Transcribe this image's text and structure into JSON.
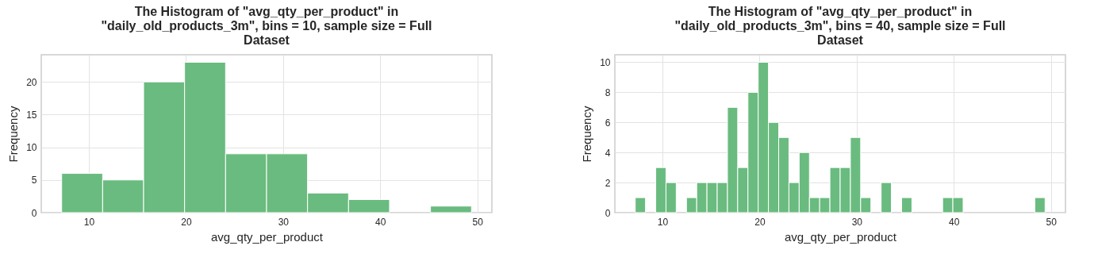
{
  "chart_data": [
    {
      "type": "histogram",
      "title": "The Histogram of \"avg_qty_per_product\" in \"daily_old_products_3m\", bins = 10, sample size = Full Dataset",
      "xlabel": "avg_qty_per_product",
      "ylabel": "Frequency",
      "color": "#6abb7f",
      "grid": true,
      "bins": [
        7.2,
        11.42,
        15.64,
        19.86,
        24.08,
        28.3,
        32.52,
        36.74,
        40.96,
        45.18,
        49.4
      ],
      "values": [
        6,
        5,
        20,
        23,
        9,
        9,
        3,
        2,
        0,
        1
      ],
      "xlim": [
        5.1,
        51.5
      ],
      "xticks": [
        10,
        20,
        30,
        40,
        50
      ],
      "ylim": [
        0,
        24.15
      ],
      "yticks": [
        0,
        5,
        10,
        15,
        20
      ]
    },
    {
      "type": "histogram",
      "title": "The Histogram of \"avg_qty_per_product\" in \"daily_old_products_3m\", bins = 40, sample size = Full Dataset",
      "xlabel": "avg_qty_per_product",
      "ylabel": "Frequency",
      "color": "#6abb7f",
      "grid": true,
      "bins": [
        7.2,
        8.255,
        9.31,
        10.365,
        11.42,
        12.475,
        13.53,
        14.585,
        15.64,
        16.695,
        17.75,
        18.805,
        19.86,
        20.915,
        21.97,
        23.025,
        24.08,
        25.135,
        26.19,
        27.245,
        28.3,
        29.355,
        30.41,
        31.465,
        32.52,
        33.575,
        34.63,
        35.685,
        36.74,
        37.795,
        38.85,
        39.905,
        40.96,
        42.015,
        43.07,
        44.125,
        45.18,
        46.235,
        47.29,
        48.345,
        49.4
      ],
      "values": [
        1,
        0,
        3,
        2,
        0,
        1,
        2,
        2,
        2,
        7,
        3,
        8,
        10,
        6,
        5,
        2,
        4,
        1,
        1,
        3,
        3,
        5,
        1,
        0,
        2,
        0,
        1,
        0,
        0,
        0,
        1,
        1,
        0,
        0,
        0,
        0,
        0,
        0,
        0,
        1
      ],
      "xlim": [
        5.1,
        51.5
      ],
      "xticks": [
        10,
        20,
        30,
        40,
        50
      ],
      "ylim": [
        0,
        10.5
      ],
      "yticks": [
        0,
        2,
        4,
        6,
        8,
        10
      ]
    }
  ]
}
